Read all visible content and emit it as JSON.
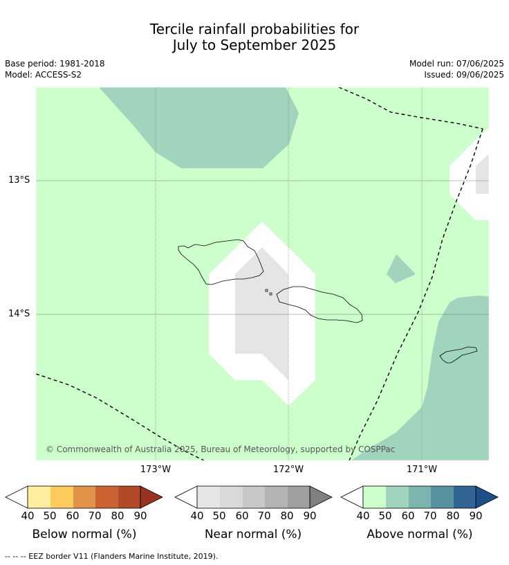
{
  "title": {
    "line1": "Tercile rainfall probabilities for",
    "line2": "July to September 2025"
  },
  "metadata": {
    "base_period": "Base period: 1981-2018",
    "model": "Model: ACCESS-S2",
    "model_run": "Model run: 07/06/2025",
    "issued": "Issued: 09/06/2025"
  },
  "map": {
    "lat_labels": [
      "13°S",
      "14°S"
    ],
    "lon_labels": [
      "173°W",
      "172°W",
      "171°W"
    ],
    "copyright": "© Commonwealth of Australia 2025, Bureau of Meteorology, supported by COSPPac",
    "colors": {
      "above_40_50": "#ccffcc",
      "above_50_60": "#a1d4bc",
      "near_40_50": "#e5e5e5",
      "white": "#ffffff"
    }
  },
  "legends": [
    {
      "title": "Below normal (%)",
      "ticks": [
        "40",
        "50",
        "60",
        "70",
        "80",
        "90"
      ],
      "colors": [
        "#ffffff",
        "#ffeda0",
        "#fecc5c",
        "#e0944a",
        "#cc6131",
        "#b24a2a",
        "#993321"
      ]
    },
    {
      "title": "Near normal (%)",
      "ticks": [
        "40",
        "50",
        "60",
        "70",
        "80",
        "90"
      ],
      "colors": [
        "#ffffff",
        "#e5e5e5",
        "#d9d9d9",
        "#c8c8c8",
        "#b3b3b3",
        "#a0a0a0",
        "#808080"
      ]
    },
    {
      "title": "Above normal (%)",
      "ticks": [
        "40",
        "50",
        "60",
        "70",
        "80",
        "90"
      ],
      "colors": [
        "#ffffff",
        "#ccffcc",
        "#a1d4bc",
        "#7cb4af",
        "#5a91a1",
        "#326496",
        "#1f4f88"
      ]
    }
  ],
  "footnote": "--  --  -- EEZ border V11 (Flanders Marine Institute, 2019)."
}
